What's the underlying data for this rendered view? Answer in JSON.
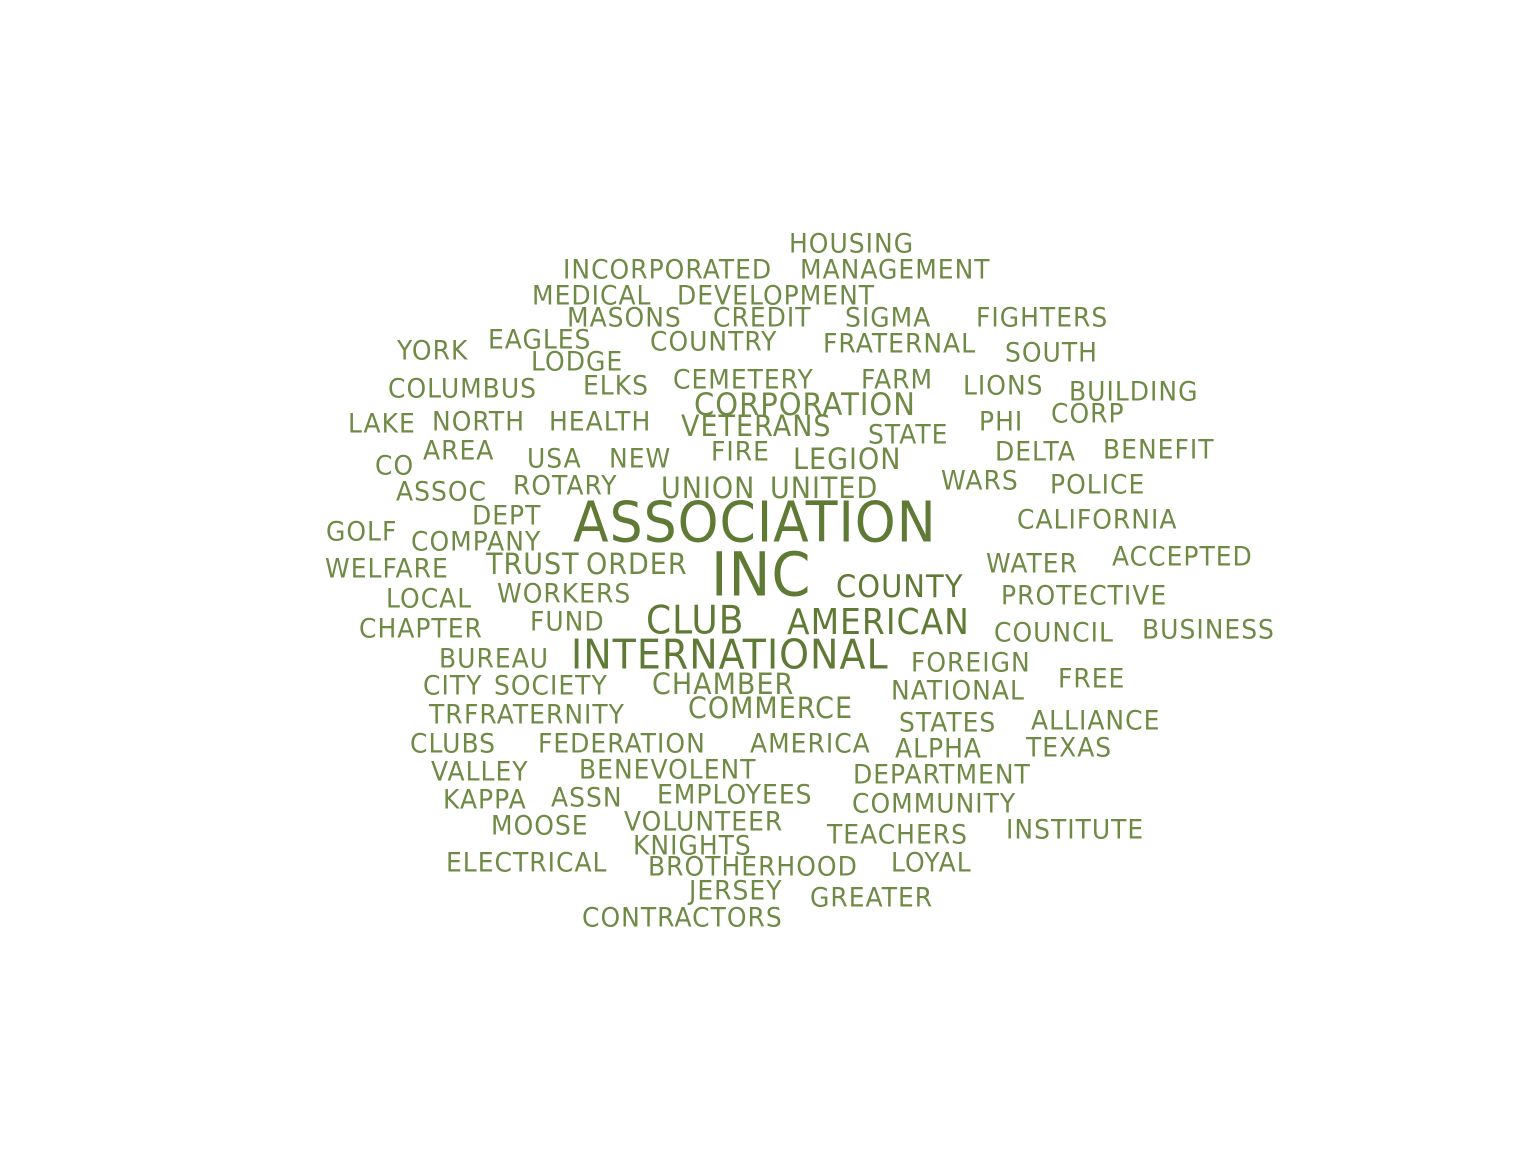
{
  "colors": {
    "background": "#ffffff",
    "word_dark": "#5f7a35",
    "word_light": "#6f8a45"
  },
  "words": [
    {
      "text": "HOUSING",
      "weight": 1
    },
    {
      "text": "INCORPORATED",
      "weight": 1
    },
    {
      "text": "MANAGEMENT",
      "weight": 1
    },
    {
      "text": "MEDICAL",
      "weight": 1
    },
    {
      "text": "DEVELOPMENT",
      "weight": 1
    },
    {
      "text": "MASONS",
      "weight": 1
    },
    {
      "text": "CREDIT",
      "weight": 1
    },
    {
      "text": "SIGMA",
      "weight": 1
    },
    {
      "text": "FIGHTERS",
      "weight": 1
    },
    {
      "text": "YORK",
      "weight": 1
    },
    {
      "text": "EAGLES",
      "weight": 1
    },
    {
      "text": "COUNTRY",
      "weight": 1
    },
    {
      "text": "FRATERNAL",
      "weight": 1
    },
    {
      "text": "SOUTH",
      "weight": 1
    },
    {
      "text": "LODGE",
      "weight": 1
    },
    {
      "text": "COLUMBUS",
      "weight": 1
    },
    {
      "text": "ELKS",
      "weight": 1
    },
    {
      "text": "CEMETERY",
      "weight": 1
    },
    {
      "text": "FARM",
      "weight": 1
    },
    {
      "text": "LIONS",
      "weight": 1
    },
    {
      "text": "BUILDING",
      "weight": 1
    },
    {
      "text": "CORPORATION",
      "weight": 1
    },
    {
      "text": "CORP",
      "weight": 1
    },
    {
      "text": "LAKE",
      "weight": 1
    },
    {
      "text": "NORTH",
      "weight": 1
    },
    {
      "text": "HEALTH",
      "weight": 1
    },
    {
      "text": "VETERANS",
      "weight": 1
    },
    {
      "text": "STATE",
      "weight": 1
    },
    {
      "text": "PHI",
      "weight": 1
    },
    {
      "text": "AREA",
      "weight": 1
    },
    {
      "text": "FIRE",
      "weight": 1
    },
    {
      "text": "DELTA",
      "weight": 1
    },
    {
      "text": "BENEFIT",
      "weight": 1
    },
    {
      "text": "CO",
      "weight": 1
    },
    {
      "text": "USA",
      "weight": 1
    },
    {
      "text": "NEW",
      "weight": 1
    },
    {
      "text": "LEGION",
      "weight": 1
    },
    {
      "text": "WARS",
      "weight": 1
    },
    {
      "text": "POLICE",
      "weight": 1
    },
    {
      "text": "ASSOC",
      "weight": 1
    },
    {
      "text": "ROTARY",
      "weight": 1
    },
    {
      "text": "UNION",
      "weight": 1
    },
    {
      "text": "UNITED",
      "weight": 1
    },
    {
      "text": "DEPT",
      "weight": 1
    },
    {
      "text": "CALIFORNIA",
      "weight": 1
    },
    {
      "text": "GOLF",
      "weight": 1
    },
    {
      "text": "ASSOCIATION",
      "weight": 4
    },
    {
      "text": "COMPANY",
      "weight": 1
    },
    {
      "text": "WATER",
      "weight": 1
    },
    {
      "text": "ACCEPTED",
      "weight": 1
    },
    {
      "text": "WELFARE",
      "weight": 1
    },
    {
      "text": "TRUST",
      "weight": 1
    },
    {
      "text": "ORDER",
      "weight": 1
    },
    {
      "text": "INC",
      "weight": 4
    },
    {
      "text": "COUNTY",
      "weight": 2
    },
    {
      "text": "LOCAL",
      "weight": 1
    },
    {
      "text": "WORKERS",
      "weight": 1
    },
    {
      "text": "PROTECTIVE",
      "weight": 1
    },
    {
      "text": "FUND",
      "weight": 1
    },
    {
      "text": "CLUB",
      "weight": 2
    },
    {
      "text": "AMERICAN",
      "weight": 2
    },
    {
      "text": "CHAPTER",
      "weight": 1
    },
    {
      "text": "COUNCIL",
      "weight": 1
    },
    {
      "text": "BUSINESS",
      "weight": 1
    },
    {
      "text": "BUREAU",
      "weight": 1
    },
    {
      "text": "INTERNATIONAL",
      "weight": 3
    },
    {
      "text": "FOREIGN",
      "weight": 1
    },
    {
      "text": "CITY",
      "weight": 1
    },
    {
      "text": "SOCIETY",
      "weight": 1
    },
    {
      "text": "CHAMBER",
      "weight": 1
    },
    {
      "text": "NATIONAL",
      "weight": 1
    },
    {
      "text": "FREE",
      "weight": 1
    },
    {
      "text": "TR",
      "weight": 1
    },
    {
      "text": "FRATERNITY",
      "weight": 1
    },
    {
      "text": "COMMERCE",
      "weight": 1
    },
    {
      "text": "STATES",
      "weight": 1
    },
    {
      "text": "ALLIANCE",
      "weight": 1
    },
    {
      "text": "CLUBS",
      "weight": 1
    },
    {
      "text": "FEDERATION",
      "weight": 1
    },
    {
      "text": "AMERICA",
      "weight": 1
    },
    {
      "text": "ALPHA",
      "weight": 1
    },
    {
      "text": "TEXAS",
      "weight": 1
    },
    {
      "text": "VALLEY",
      "weight": 1
    },
    {
      "text": "BENEVOLENT",
      "weight": 1
    },
    {
      "text": "DEPARTMENT",
      "weight": 1
    },
    {
      "text": "KAPPA",
      "weight": 1
    },
    {
      "text": "ASSN",
      "weight": 1
    },
    {
      "text": "EMPLOYEES",
      "weight": 1
    },
    {
      "text": "COMMUNITY",
      "weight": 1
    },
    {
      "text": "MOOSE",
      "weight": 1
    },
    {
      "text": "VOLUNTEER",
      "weight": 1
    },
    {
      "text": "TEACHERS",
      "weight": 1
    },
    {
      "text": "INSTITUTE",
      "weight": 1
    },
    {
      "text": "KNIGHTS",
      "weight": 1
    },
    {
      "text": "ELECTRICAL",
      "weight": 1
    },
    {
      "text": "BROTHERHOOD",
      "weight": 1
    },
    {
      "text": "LOYAL",
      "weight": 1
    },
    {
      "text": "JERSEY",
      "weight": 1
    },
    {
      "text": "GREATER",
      "weight": 1
    },
    {
      "text": "CONTRACTORS",
      "weight": 1
    }
  ]
}
